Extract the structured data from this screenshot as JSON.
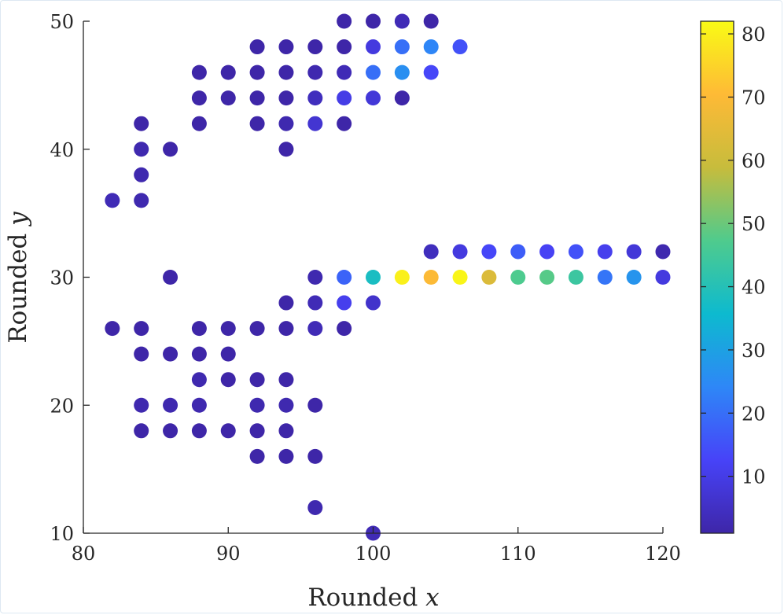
{
  "chart_data": {
    "type": "scatter",
    "title": "",
    "xlabel": {
      "text": "Rounded ",
      "var": "x"
    },
    "ylabel": {
      "text": "Rounded ",
      "var": "y"
    },
    "xlim": [
      80,
      120
    ],
    "ylim": [
      10,
      50
    ],
    "xticks": [
      80,
      90,
      100,
      110,
      120
    ],
    "yticks": [
      10,
      20,
      30,
      40,
      50
    ],
    "grid": false,
    "colorbar": {
      "range": [
        1,
        82
      ],
      "ticks": [
        10,
        20,
        30,
        40,
        50,
        60,
        70,
        80
      ],
      "colormap": "parula",
      "stops": [
        "#3e26a8",
        "#4743f8",
        "#2e87f7",
        "#0dbacf",
        "#4fcb8d",
        "#c7bc3c",
        "#feba36",
        "#f9fb15"
      ]
    },
    "points": [
      {
        "x": 98,
        "y": 50,
        "c": 1
      },
      {
        "x": 100,
        "y": 50,
        "c": 1
      },
      {
        "x": 102,
        "y": 50,
        "c": 3
      },
      {
        "x": 104,
        "y": 50,
        "c": 1
      },
      {
        "x": 92,
        "y": 48,
        "c": 1
      },
      {
        "x": 94,
        "y": 48,
        "c": 1
      },
      {
        "x": 96,
        "y": 48,
        "c": 1
      },
      {
        "x": 98,
        "y": 48,
        "c": 1
      },
      {
        "x": 100,
        "y": 48,
        "c": 9
      },
      {
        "x": 102,
        "y": 48,
        "c": 20
      },
      {
        "x": 104,
        "y": 48,
        "c": 24
      },
      {
        "x": 106,
        "y": 48,
        "c": 15
      },
      {
        "x": 88,
        "y": 46,
        "c": 1
      },
      {
        "x": 90,
        "y": 46,
        "c": 1
      },
      {
        "x": 92,
        "y": 46,
        "c": 1
      },
      {
        "x": 94,
        "y": 46,
        "c": 1
      },
      {
        "x": 96,
        "y": 46,
        "c": 2
      },
      {
        "x": 98,
        "y": 46,
        "c": 3
      },
      {
        "x": 100,
        "y": 46,
        "c": 20
      },
      {
        "x": 102,
        "y": 46,
        "c": 26
      },
      {
        "x": 104,
        "y": 46,
        "c": 13
      },
      {
        "x": 88,
        "y": 44,
        "c": 1
      },
      {
        "x": 90,
        "y": 44,
        "c": 1
      },
      {
        "x": 92,
        "y": 44,
        "c": 1
      },
      {
        "x": 94,
        "y": 44,
        "c": 1
      },
      {
        "x": 96,
        "y": 44,
        "c": 4
      },
      {
        "x": 98,
        "y": 44,
        "c": 10
      },
      {
        "x": 100,
        "y": 44,
        "c": 8
      },
      {
        "x": 102,
        "y": 44,
        "c": 1
      },
      {
        "x": 84,
        "y": 42,
        "c": 1
      },
      {
        "x": 88,
        "y": 42,
        "c": 1
      },
      {
        "x": 92,
        "y": 42,
        "c": 1
      },
      {
        "x": 94,
        "y": 42,
        "c": 2
      },
      {
        "x": 96,
        "y": 42,
        "c": 7
      },
      {
        "x": 98,
        "y": 42,
        "c": 1
      },
      {
        "x": 84,
        "y": 40,
        "c": 2
      },
      {
        "x": 86,
        "y": 40,
        "c": 1
      },
      {
        "x": 94,
        "y": 40,
        "c": 1
      },
      {
        "x": 84,
        "y": 38,
        "c": 2
      },
      {
        "x": 82,
        "y": 36,
        "c": 3
      },
      {
        "x": 84,
        "y": 36,
        "c": 2
      },
      {
        "x": 104,
        "y": 32,
        "c": 4
      },
      {
        "x": 106,
        "y": 32,
        "c": 9
      },
      {
        "x": 108,
        "y": 32,
        "c": 13
      },
      {
        "x": 110,
        "y": 32,
        "c": 17
      },
      {
        "x": 112,
        "y": 32,
        "c": 12
      },
      {
        "x": 114,
        "y": 32,
        "c": 15
      },
      {
        "x": 116,
        "y": 32,
        "c": 11
      },
      {
        "x": 118,
        "y": 32,
        "c": 8
      },
      {
        "x": 120,
        "y": 32,
        "c": 2
      },
      {
        "x": 86,
        "y": 30,
        "c": 1
      },
      {
        "x": 96,
        "y": 30,
        "c": 2
      },
      {
        "x": 98,
        "y": 30,
        "c": 18
      },
      {
        "x": 100,
        "y": 30,
        "c": 38
      },
      {
        "x": 102,
        "y": 30,
        "c": 80
      },
      {
        "x": 104,
        "y": 30,
        "c": 70
      },
      {
        "x": 106,
        "y": 30,
        "c": 81
      },
      {
        "x": 108,
        "y": 30,
        "c": 63
      },
      {
        "x": 110,
        "y": 30,
        "c": 47
      },
      {
        "x": 112,
        "y": 30,
        "c": 48
      },
      {
        "x": 114,
        "y": 30,
        "c": 44
      },
      {
        "x": 116,
        "y": 30,
        "c": 21
      },
      {
        "x": 118,
        "y": 30,
        "c": 27
      },
      {
        "x": 120,
        "y": 30,
        "c": 9
      },
      {
        "x": 94,
        "y": 28,
        "c": 1
      },
      {
        "x": 96,
        "y": 28,
        "c": 3
      },
      {
        "x": 98,
        "y": 28,
        "c": 11
      },
      {
        "x": 100,
        "y": 28,
        "c": 6
      },
      {
        "x": 82,
        "y": 26,
        "c": 1
      },
      {
        "x": 84,
        "y": 26,
        "c": 1
      },
      {
        "x": 88,
        "y": 26,
        "c": 1
      },
      {
        "x": 90,
        "y": 26,
        "c": 1
      },
      {
        "x": 92,
        "y": 26,
        "c": 1
      },
      {
        "x": 94,
        "y": 26,
        "c": 1
      },
      {
        "x": 96,
        "y": 26,
        "c": 3
      },
      {
        "x": 98,
        "y": 26,
        "c": 1
      },
      {
        "x": 84,
        "y": 24,
        "c": 1
      },
      {
        "x": 86,
        "y": 24,
        "c": 1
      },
      {
        "x": 88,
        "y": 24,
        "c": 1
      },
      {
        "x": 90,
        "y": 24,
        "c": 1
      },
      {
        "x": 88,
        "y": 22,
        "c": 2
      },
      {
        "x": 90,
        "y": 22,
        "c": 1
      },
      {
        "x": 92,
        "y": 22,
        "c": 1
      },
      {
        "x": 94,
        "y": 22,
        "c": 1
      },
      {
        "x": 84,
        "y": 20,
        "c": 2
      },
      {
        "x": 86,
        "y": 20,
        "c": 2
      },
      {
        "x": 88,
        "y": 20,
        "c": 2
      },
      {
        "x": 92,
        "y": 20,
        "c": 2
      },
      {
        "x": 94,
        "y": 20,
        "c": 2
      },
      {
        "x": 96,
        "y": 20,
        "c": 1
      },
      {
        "x": 84,
        "y": 18,
        "c": 1
      },
      {
        "x": 86,
        "y": 18,
        "c": 1
      },
      {
        "x": 88,
        "y": 18,
        "c": 1
      },
      {
        "x": 90,
        "y": 18,
        "c": 1
      },
      {
        "x": 92,
        "y": 18,
        "c": 1
      },
      {
        "x": 94,
        "y": 18,
        "c": 1
      },
      {
        "x": 92,
        "y": 16,
        "c": 1
      },
      {
        "x": 94,
        "y": 16,
        "c": 1
      },
      {
        "x": 96,
        "y": 16,
        "c": 1
      },
      {
        "x": 96,
        "y": 12,
        "c": 2
      },
      {
        "x": 100,
        "y": 10,
        "c": 3
      }
    ]
  }
}
